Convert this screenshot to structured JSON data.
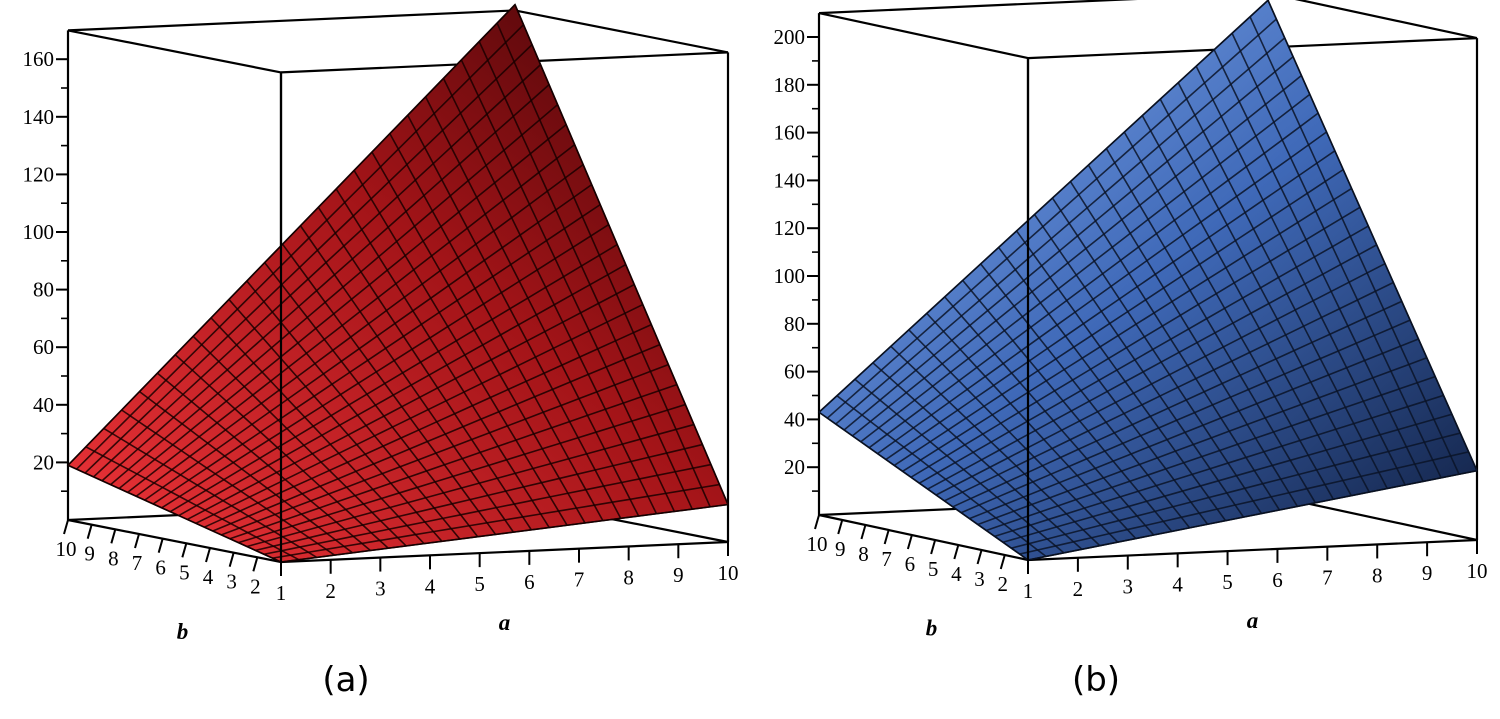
{
  "chart_data": [
    {
      "type": "surface3d",
      "panel_label": "(a)",
      "xlabel": "a",
      "ylabel": "b",
      "x_ticks": [
        "1",
        "2",
        "3",
        "4",
        "5",
        "6",
        "7",
        "8",
        "9",
        "10"
      ],
      "y_ticks": [
        "1",
        "2",
        "3",
        "4",
        "5",
        "6",
        "7",
        "8",
        "9",
        "10"
      ],
      "z_ticks": [
        "20",
        "40",
        "60",
        "80",
        "100",
        "120",
        "140",
        "160"
      ],
      "x_range": [
        1,
        10
      ],
      "y_range": [
        1,
        10
      ],
      "zlim": [
        0,
        170
      ],
      "surface_corners": {
        "a1_b1": 0,
        "a10_b1": 13,
        "a1_b10": 19,
        "a10_b10": 172
      },
      "colors": {
        "light": "#e0242a",
        "dark": "#4a0608",
        "grid": "#1a0000"
      }
    },
    {
      "type": "surface3d",
      "panel_label": "(b)",
      "xlabel": "a",
      "ylabel": "b",
      "x_ticks": [
        "1",
        "2",
        "3",
        "4",
        "5",
        "6",
        "7",
        "8",
        "9",
        "10"
      ],
      "y_ticks": [
        "1",
        "2",
        "3",
        "4",
        "5",
        "6",
        "7",
        "8",
        "9",
        "10"
      ],
      "z_ticks": [
        "20",
        "40",
        "60",
        "80",
        "100",
        "120",
        "140",
        "160",
        "180",
        "200"
      ],
      "x_range": [
        1,
        10
      ],
      "y_range": [
        1,
        10
      ],
      "zlim": [
        0,
        210
      ],
      "surface_corners": {
        "a1_b1": 0,
        "a10_b1": 29,
        "a1_b10": 43,
        "a10_b10": 207
      },
      "colors": {
        "light": "#7da6e8",
        "dark": "#14254d",
        "grid": "#0a1428"
      }
    }
  ]
}
